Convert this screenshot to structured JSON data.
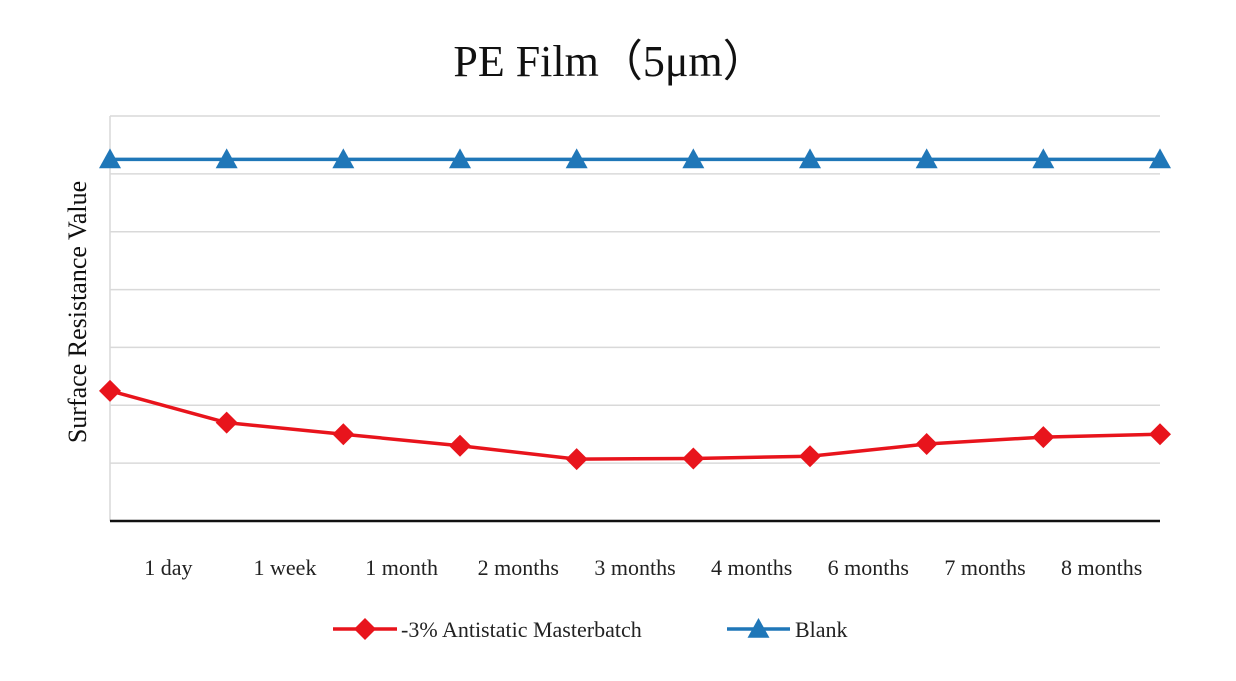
{
  "chart_data": {
    "type": "line",
    "title": "PE Film（5μm）",
    "xlabel": "",
    "ylabel": "Surface Resistance Value",
    "categories": [
      "",
      "1 day",
      "1 week",
      "1 month",
      "2 months",
      "3 months",
      "4 months",
      "6 months",
      "7 months",
      "8 months"
    ],
    "ylim": [
      0,
      7
    ],
    "y_ticks_labeled": false,
    "grid": true,
    "legend_position": "bottom",
    "series": [
      {
        "name": "-3% Antistatic  Masterbatch",
        "color": "#e8141c",
        "marker": "diamond",
        "values": [
          2.25,
          1.7,
          1.5,
          1.3,
          1.07,
          1.08,
          1.12,
          1.33,
          1.45,
          1.5
        ]
      },
      {
        "name": "Blank",
        "color": "#1f77b8",
        "marker": "triangle",
        "values": [
          6.25,
          6.25,
          6.25,
          6.25,
          6.25,
          6.25,
          6.25,
          6.25,
          6.25,
          6.25
        ]
      }
    ]
  }
}
